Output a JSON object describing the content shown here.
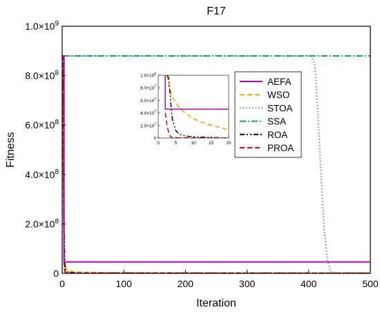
{
  "chart_data": {
    "type": "line",
    "title": "F17",
    "xlabel": "Iteration",
    "ylabel": "Fitness",
    "xlim": [
      0,
      500
    ],
    "ylim": [
      0,
      1000000000
    ],
    "xticks": [
      0,
      100,
      200,
      300,
      400,
      500
    ],
    "xtick_labels": [
      "0",
      "100",
      "200",
      "300",
      "400",
      "500"
    ],
    "yticks": [
      0,
      200000000,
      400000000,
      600000000,
      800000000,
      1000000000
    ],
    "ytick_labels": [
      {
        "base": "0",
        "exp": ""
      },
      {
        "base": "2.0×10",
        "exp": "8"
      },
      {
        "base": "4.0×10",
        "exp": "8"
      },
      {
        "base": "6.0×10",
        "exp": "8"
      },
      {
        "base": "8.0×10",
        "exp": "8"
      },
      {
        "base": "1.0×10",
        "exp": "9"
      }
    ],
    "grid": false,
    "legend_position": "upper-right-inner",
    "series": [
      {
        "name": "AEFA",
        "color": "#bf00bf",
        "dash": "solid",
        "points": [
          [
            1,
            880000000
          ],
          [
            3,
            880000000
          ],
          [
            3,
            46000000
          ],
          [
            500,
            46000000
          ]
        ]
      },
      {
        "name": "WSO",
        "color": "#f5a300",
        "dash": "dashed",
        "points": [
          [
            1,
            800000000
          ],
          [
            2,
            300000000
          ],
          [
            3,
            90000000
          ],
          [
            4,
            40000000
          ],
          [
            6,
            20000000
          ],
          [
            10,
            10000000
          ],
          [
            20,
            5000000
          ],
          [
            50,
            3000000
          ],
          [
            100,
            2000000
          ],
          [
            200,
            1500000
          ],
          [
            300,
            1200000
          ],
          [
            400,
            1000000
          ],
          [
            500,
            1000000
          ]
        ]
      },
      {
        "name": "STOA",
        "color": "#3d8fe0",
        "dash": "dotted",
        "points": [
          [
            1,
            880000000
          ],
          [
            405,
            880000000
          ],
          [
            410,
            840000000
          ],
          [
            415,
            650000000
          ],
          [
            420,
            400000000
          ],
          [
            425,
            180000000
          ],
          [
            430,
            60000000
          ],
          [
            435,
            10000000
          ],
          [
            440,
            1000000
          ],
          [
            500,
            500000
          ]
        ]
      },
      {
        "name": "SSA",
        "color": "#10a060",
        "dash": "dashdot",
        "points": [
          [
            1,
            880000000
          ],
          [
            500,
            880000000
          ]
        ]
      },
      {
        "name": "ROA",
        "color": "#000000",
        "dash": "dashdotdot",
        "points": [
          [
            1,
            880000000
          ],
          [
            2,
            880000000
          ],
          [
            3,
            200000000
          ],
          [
            4,
            50000000
          ],
          [
            5,
            10000000
          ],
          [
            10,
            3000000
          ],
          [
            30,
            1000000
          ],
          [
            500,
            500000
          ]
        ]
      },
      {
        "name": "PROA",
        "color": "#ee0000",
        "dash": "dashed",
        "points": [
          [
            1,
            880000000
          ],
          [
            2,
            400000000
          ],
          [
            3,
            60000000
          ],
          [
            4,
            10000000
          ],
          [
            6,
            1000000
          ],
          [
            500,
            0
          ]
        ]
      }
    ],
    "inset": {
      "xlim": [
        0,
        20
      ],
      "ylim": [
        0,
        100000000
      ],
      "xticks": [
        0,
        5,
        10,
        15,
        20
      ],
      "xtick_labels": [
        "0",
        "5",
        "10",
        "15",
        "20"
      ],
      "yticks": [
        0,
        20000000,
        40000000,
        60000000,
        80000000,
        100000000
      ],
      "ytick_labels": [
        {
          "base": "0",
          "exp": ""
        },
        {
          "base": "2.0×10",
          "exp": "7"
        },
        {
          "base": "4.0×10",
          "exp": "7"
        },
        {
          "base": "6.0×10",
          "exp": "7"
        },
        {
          "base": "8.0×10",
          "exp": "7"
        },
        {
          "base": "1.0×10",
          "exp": "8"
        }
      ],
      "series": [
        {
          "name": "AEFA",
          "points": [
            [
              2,
              100000000
            ],
            [
              2,
              46000000
            ],
            [
              20,
              46000000
            ]
          ]
        },
        {
          "name": "WSO",
          "points": [
            [
              2.5,
              100000000
            ],
            [
              3,
              85000000
            ],
            [
              4,
              65000000
            ],
            [
              6,
              48000000
            ],
            [
              8,
              38000000
            ],
            [
              10,
              31000000
            ],
            [
              12,
              26000000
            ],
            [
              14,
              22000000
            ],
            [
              16,
              19000000
            ],
            [
              18,
              16000000
            ],
            [
              20,
              14000000
            ]
          ]
        },
        {
          "name": "STOA",
          "points": [
            [
              2.3,
              100000000
            ],
            [
              2.3,
              100000000
            ]
          ]
        },
        {
          "name": "SSA",
          "points": [
            [
              2.3,
              100000000
            ],
            [
              2.3,
              100000000
            ]
          ]
        },
        {
          "name": "ROA",
          "points": [
            [
              2.6,
              100000000
            ],
            [
              3,
              95000000
            ],
            [
              3.5,
              60000000
            ],
            [
              4,
              30000000
            ],
            [
              5,
              12000000
            ],
            [
              6,
              6000000
            ],
            [
              8,
              3000000
            ],
            [
              10,
              2000000
            ],
            [
              12,
              1500000
            ],
            [
              15,
              800000
            ],
            [
              20,
              300000
            ]
          ]
        },
        {
          "name": "PROA",
          "points": [
            [
              2,
              40000000
            ],
            [
              2.5,
              20000000
            ],
            [
              3,
              8000000
            ],
            [
              3.5,
              2000000
            ],
            [
              4,
              500000
            ],
            [
              20,
              0
            ]
          ]
        }
      ]
    }
  }
}
